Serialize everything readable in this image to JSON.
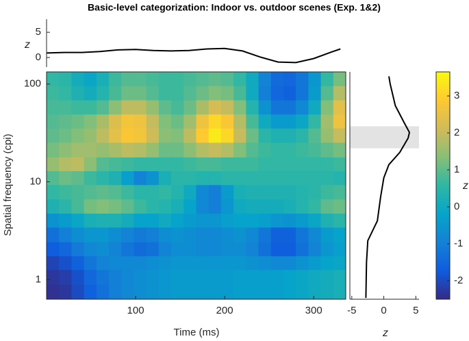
{
  "chart_data": [
    {
      "type": "line",
      "title": "Basic-level categorization: Indoor vs. outdoor scenes (Exp. 1&2)",
      "ylabel": "z",
      "color": "#000000",
      "x": [
        0,
        20,
        40,
        60,
        80,
        100,
        120,
        140,
        160,
        180,
        200,
        220,
        240,
        260,
        280,
        300,
        320,
        330
      ],
      "y": [
        0.9,
        1.0,
        1.0,
        1.2,
        1.5,
        1.6,
        1.4,
        1.3,
        1.4,
        1.7,
        1.8,
        1.3,
        0.1,
        -0.9,
        -1.0,
        -0.2,
        1.1,
        1.7
      ],
      "xlim": [
        0,
        336
      ],
      "ylim": [
        -1.9,
        7.6
      ],
      "yticks": [
        0,
        5
      ]
    },
    {
      "type": "heatmap",
      "xlabel": "Time (ms)",
      "ylabel": "Spatial frequency (cpi)",
      "ylog": true,
      "colorbar_label": "z",
      "x": [
        7,
        21,
        35,
        49,
        63,
        77,
        91,
        105,
        119,
        133,
        147,
        161,
        175,
        189,
        203,
        217,
        231,
        245,
        259,
        273,
        287,
        301,
        315,
        329
      ],
      "y": [
        113,
        80,
        58,
        41,
        30,
        21,
        15,
        11,
        7.8,
        5.6,
        4,
        2.9,
        2,
        1.5,
        1.05,
        0.75
      ],
      "xlim": [
        0,
        336
      ],
      "xticks": [
        100,
        200,
        300
      ],
      "ylim": [
        0.63,
        133
      ],
      "yticks": [
        1,
        10,
        100
      ],
      "clim": [
        -2.5,
        3.65
      ],
      "cticks": [
        -2,
        -1,
        0,
        1,
        2,
        3
      ],
      "colormap": [
        "#352a87",
        "#0f5cdd",
        "#1481d6",
        "#06a4ca",
        "#2eb7a4",
        "#87bf77",
        "#d1bb59",
        "#fec832",
        "#f9fb0e"
      ],
      "z": [
        [
          0.6,
          0.5,
          0.1,
          -0.1,
          0.2,
          0.7,
          0.9,
          0.9,
          0.8,
          0.7,
          0.7,
          0.8,
          0.9,
          1.0,
          0.9,
          0.6,
          0.0,
          -0.9,
          -1.4,
          -1.5,
          -1.2,
          -0.5,
          0.6,
          1.2
        ],
        [
          0.7,
          0.6,
          0.3,
          0.1,
          0.4,
          0.8,
          1.1,
          1.1,
          0.9,
          0.7,
          0.7,
          0.9,
          1.1,
          1.3,
          1.2,
          0.8,
          0.0,
          -1.0,
          -1.5,
          -1.6,
          -1.2,
          -0.4,
          0.9,
          1.8
        ],
        [
          0.8,
          0.8,
          0.7,
          0.7,
          0.9,
          1.4,
          1.9,
          1.9,
          1.5,
          1.0,
          0.8,
          1.1,
          1.7,
          2.2,
          2.0,
          1.3,
          0.4,
          -0.6,
          -1.2,
          -1.2,
          -0.8,
          0.0,
          1.3,
          2.4
        ],
        [
          0.9,
          1.0,
          1.1,
          1.3,
          1.7,
          2.3,
          2.7,
          2.6,
          2.0,
          1.3,
          1.1,
          1.6,
          2.6,
          3.1,
          2.8,
          1.8,
          0.8,
          0.0,
          -0.4,
          -0.4,
          -0.1,
          0.6,
          1.6,
          2.6
        ],
        [
          1.0,
          1.1,
          1.3,
          1.5,
          1.9,
          2.4,
          2.8,
          2.7,
          2.1,
          1.4,
          1.3,
          1.9,
          2.9,
          3.4,
          3.1,
          2.0,
          1.1,
          0.5,
          0.3,
          0.3,
          0.5,
          0.9,
          1.5,
          2.0
        ],
        [
          1.2,
          1.4,
          1.6,
          1.6,
          1.5,
          1.7,
          1.9,
          1.8,
          1.5,
          1.1,
          1.1,
          1.4,
          1.8,
          2.0,
          1.8,
          1.3,
          0.9,
          0.7,
          0.6,
          0.6,
          0.7,
          0.8,
          1.0,
          1.2
        ],
        [
          1.5,
          1.8,
          1.9,
          1.4,
          0.9,
          0.8,
          0.7,
          0.6,
          0.6,
          0.6,
          0.6,
          0.7,
          0.8,
          0.8,
          0.7,
          0.7,
          0.7,
          0.6,
          0.6,
          0.6,
          0.6,
          0.6,
          0.6,
          0.7
        ],
        [
          0.9,
          1.1,
          1.0,
          0.7,
          0.5,
          0.3,
          -0.3,
          -0.9,
          -0.6,
          0.2,
          0.5,
          0.5,
          0.4,
          0.4,
          0.5,
          0.5,
          0.5,
          0.5,
          0.5,
          0.5,
          0.5,
          0.5,
          0.5,
          0.4
        ],
        [
          0.6,
          0.7,
          0.8,
          0.9,
          1.0,
          0.9,
          0.7,
          0.5,
          0.5,
          0.6,
          0.4,
          0.0,
          -0.8,
          -1.0,
          -0.4,
          0.2,
          0.3,
          0.3,
          0.3,
          0.3,
          0.4,
          0.5,
          0.7,
          0.8
        ],
        [
          0.3,
          0.5,
          0.8,
          1.2,
          1.3,
          1.2,
          1.0,
          0.7,
          0.5,
          0.4,
          0.2,
          -0.2,
          -0.8,
          -1.0,
          -0.5,
          0.0,
          0.1,
          0.1,
          0.1,
          0.2,
          0.4,
          0.6,
          1.0,
          1.1
        ],
        [
          -0.6,
          -0.4,
          -0.1,
          0.2,
          0.3,
          0.3,
          0.1,
          -0.2,
          -0.2,
          0.0,
          -0.2,
          -0.4,
          -0.5,
          -0.5,
          -0.3,
          -0.2,
          -0.2,
          -0.3,
          -0.5,
          -0.6,
          -0.4,
          -0.1,
          0.3,
          0.5
        ],
        [
          -1.3,
          -1.0,
          -0.7,
          -0.5,
          -0.5,
          -0.7,
          -0.9,
          -1.1,
          -1.0,
          -0.7,
          -0.6,
          -0.7,
          -0.8,
          -0.8,
          -0.7,
          -0.6,
          -0.8,
          -1.2,
          -1.6,
          -1.6,
          -1.2,
          -0.8,
          -0.4,
          -0.2
        ],
        [
          -1.7,
          -1.5,
          -1.1,
          -0.8,
          -0.7,
          -0.9,
          -1.2,
          -1.4,
          -1.3,
          -0.9,
          -0.7,
          -0.7,
          -0.8,
          -0.8,
          -0.7,
          -0.7,
          -0.9,
          -1.3,
          -1.7,
          -1.7,
          -1.3,
          -0.9,
          -0.5,
          -0.3
        ],
        [
          -2.1,
          -1.9,
          -1.6,
          -1.2,
          -0.9,
          -0.8,
          -0.8,
          -0.8,
          -0.7,
          -0.6,
          -0.5,
          -0.5,
          -0.5,
          -0.5,
          -0.5,
          -0.5,
          -0.6,
          -0.7,
          -0.8,
          -0.8,
          -0.6,
          -0.4,
          -0.2,
          -0.1
        ],
        [
          -2.3,
          -2.2,
          -1.9,
          -1.5,
          -1.2,
          -1.0,
          -0.8,
          -0.7,
          -0.6,
          -0.5,
          -0.4,
          -0.4,
          -0.4,
          -0.4,
          -0.4,
          -0.3,
          -0.3,
          -0.3,
          -0.3,
          -0.2,
          -0.1,
          0.0,
          0.1,
          0.2
        ],
        [
          -2.4,
          -2.3,
          -2.0,
          -1.6,
          -1.3,
          -1.0,
          -0.8,
          -0.7,
          -0.6,
          -0.5,
          -0.4,
          -0.4,
          -0.4,
          -0.4,
          -0.4,
          -0.3,
          -0.3,
          -0.3,
          -0.3,
          -0.2,
          -0.1,
          0.0,
          0.1,
          0.2
        ]
      ]
    },
    {
      "type": "line",
      "xlabel": "z",
      "color": "#000000",
      "ylog": true,
      "x": [
        0.8,
        1.0,
        1.8,
        3.2,
        4.0,
        3.8,
        2.5,
        0.8,
        0.0,
        -0.5,
        -1.0,
        -2.5,
        -2.7,
        -2.8
      ],
      "y": [
        120,
        100,
        60,
        40,
        32,
        28,
        20,
        15,
        11,
        7,
        4,
        2.5,
        1.5,
        0.65
      ],
      "xlim": [
        -5.3,
        5.5
      ],
      "xticks": [
        -5,
        0,
        5
      ],
      "ylim": [
        0.63,
        133
      ],
      "band": [
        22,
        37
      ],
      "band_color": "#e3e3e3"
    }
  ]
}
